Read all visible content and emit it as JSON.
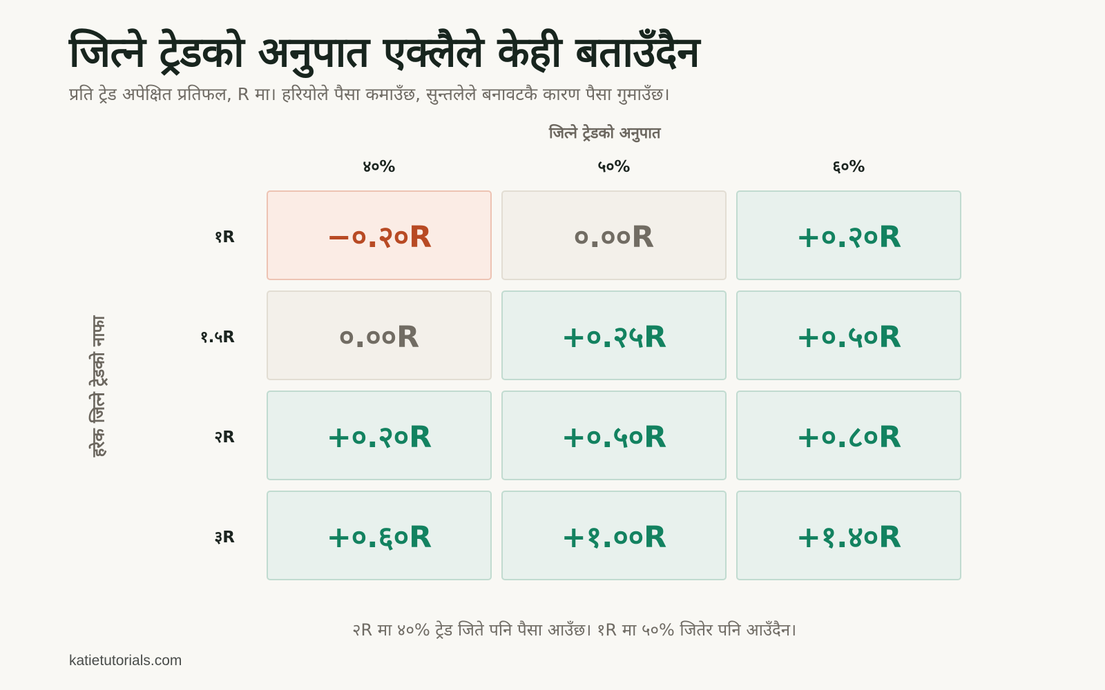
{
  "title": "जित्ने ट्रेडको अनुपात एक्लैले केही बताउँदैन",
  "subtitle": "प्रति ट्रेड अपेक्षित प्रतिफल, R मा। हरियोले पैसा कमाउँछ, सुन्तलेले बनावटकै कारण पैसा गुमाउँछ।",
  "footnote": "२R मा ४०% ट्रेड जिते पनि पैसा आउँछ। १R मा ५०% जितेर पनि आउँदैन।",
  "brand": "katietutorials.com",
  "colors": {
    "positive_text": "#138260",
    "positive_bg": "#e8f1ed",
    "negative_text": "#b84a24",
    "negative_bg": "#fbece5",
    "neutral_text": "#716c63",
    "neutral_bg": "#f3f0ea"
  },
  "chart_data": {
    "type": "heatmap",
    "x_axis_label": "जित्ने ट्रेडको अनुपात",
    "y_axis_label": "हरेक जित्ने ट्रेडको नाफा",
    "columns": [
      "४०%",
      "५०%",
      "६०%"
    ],
    "rows": [
      "१R",
      "१.५R",
      "२R",
      "३R"
    ],
    "values": [
      [
        -0.2,
        0.0,
        0.2
      ],
      [
        0.0,
        0.25,
        0.5
      ],
      [
        0.2,
        0.5,
        0.8
      ],
      [
        0.6,
        1.0,
        1.4
      ]
    ],
    "labels": [
      [
        "−०.२०R",
        "०.००R",
        "+०.२०R"
      ],
      [
        "०.००R",
        "+०.२५R",
        "+०.५०R"
      ],
      [
        "+०.२०R",
        "+०.५०R",
        "+०.८०R"
      ],
      [
        "+०.६०R",
        "+१.००R",
        "+१.४०R"
      ]
    ],
    "unit": "R"
  }
}
